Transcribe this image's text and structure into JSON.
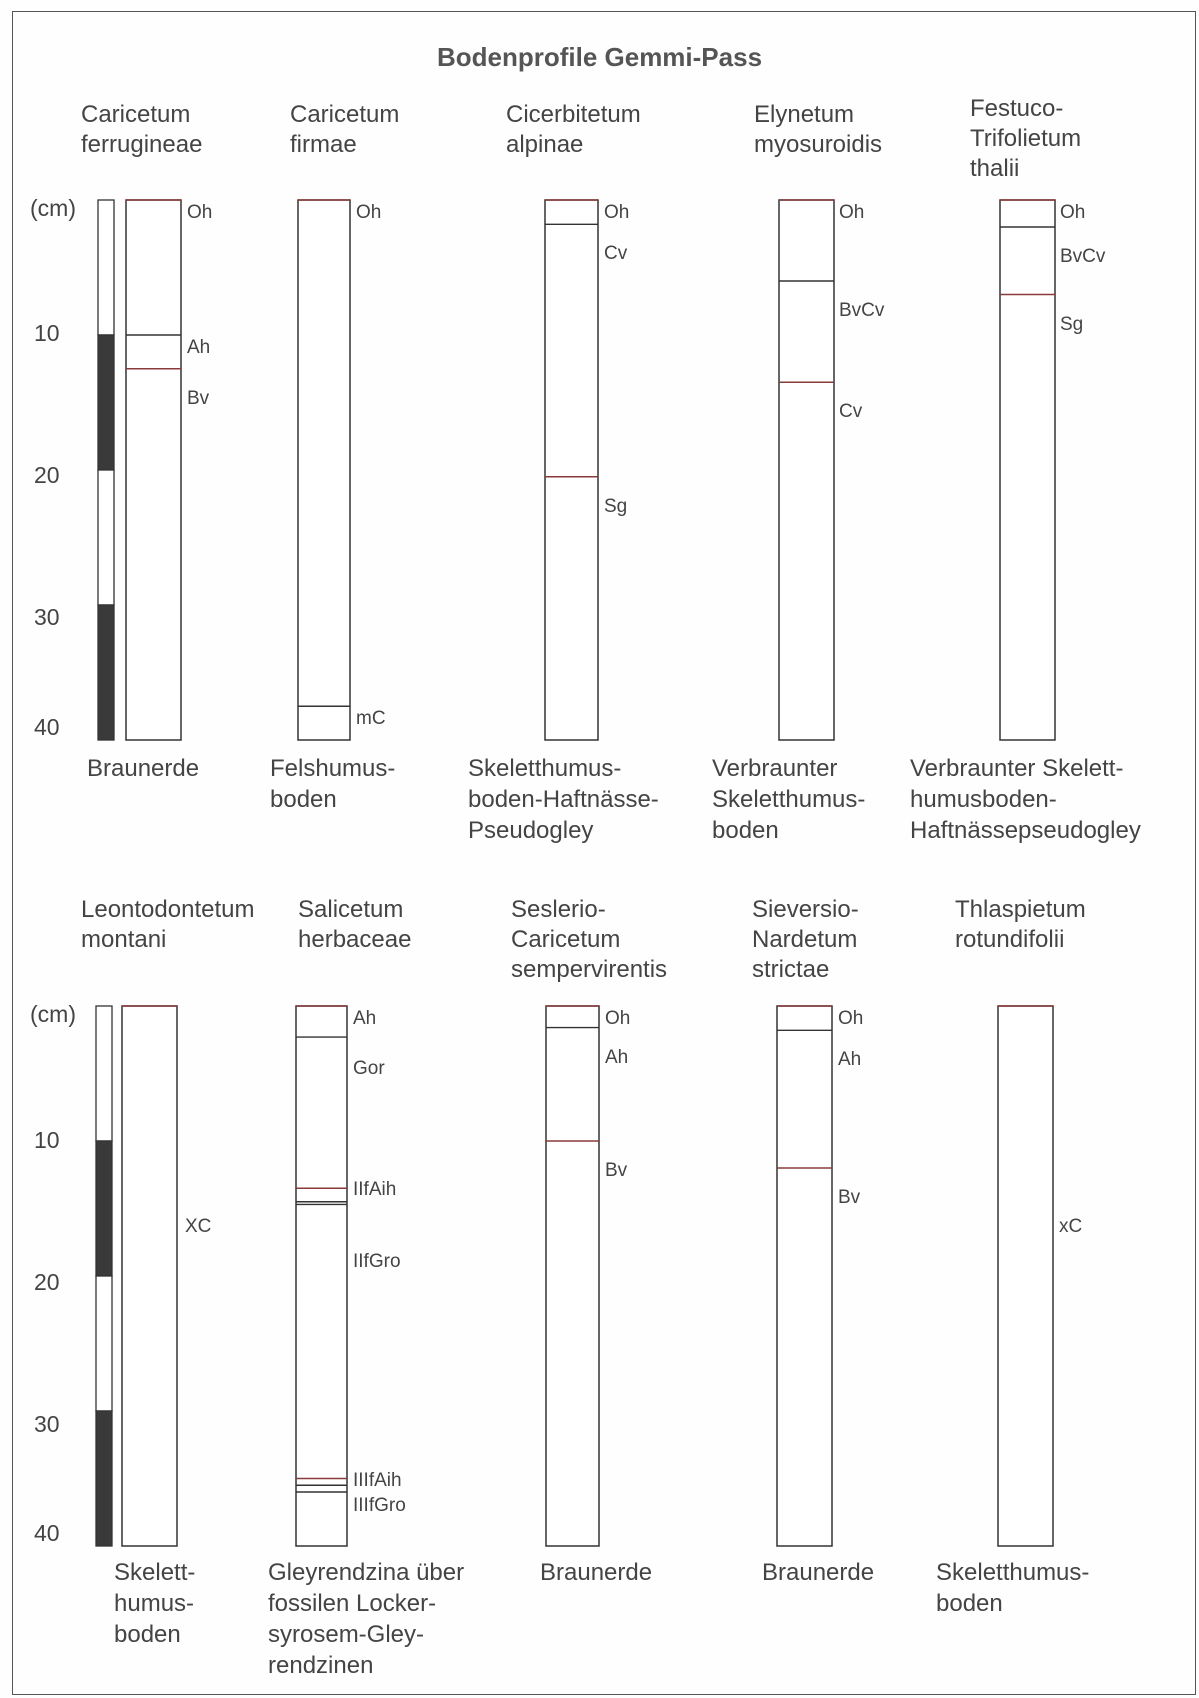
{
  "title": "Bodenprofile Gemmi-Pass",
  "colors": {
    "line": "#333333",
    "boundary": "#8b3a3a",
    "scale_dark": "#3a3a3a"
  },
  "scale": {
    "unit": "(cm)",
    "ticks": [
      10,
      20,
      30,
      40
    ],
    "segments": [
      "white",
      "dark",
      "white",
      "dark"
    ]
  },
  "profiles": [
    {
      "association": "Caricetum\nferrugineae",
      "soil_type": "Braunerde",
      "depth_cm": 40,
      "horizons": [
        {
          "label": "Oh",
          "top": 0
        },
        {
          "label": "Ah",
          "top": 10
        },
        {
          "label": "Bv",
          "top": 12.5
        }
      ]
    },
    {
      "association": "Caricetum\nfirmae",
      "soil_type": "Felshumus-\nboden",
      "depth_cm": 40,
      "horizons": [
        {
          "label": "Oh",
          "top": 0
        },
        {
          "label": "mC",
          "top": 37.5
        }
      ]
    },
    {
      "association": "Cicerbitetum\nalpinae",
      "soil_type": "Skeletthumus-\nboden-Haftnässe-\nPseudogley",
      "depth_cm": 40,
      "horizons": [
        {
          "label": "Oh",
          "top": 0
        },
        {
          "label": "Cv",
          "top": 1.8
        },
        {
          "label": "Sg",
          "top": 20.5
        }
      ]
    },
    {
      "association": "Elynetum\nmyosuroidis",
      "soil_type": "Verbraunter\nSkeletthumus-\nboden",
      "depth_cm": 40,
      "horizons": [
        {
          "label": "Oh",
          "top": 0
        },
        {
          "label": "BvCv",
          "top": 6
        },
        {
          "label": "Cv",
          "top": 13.5
        }
      ]
    },
    {
      "association": "Festuco-\nTrifolietum\nthalii",
      "soil_type": "Verbraunter Skelett-\nhumusboden-\nHaftnässepseudogley",
      "depth_cm": 40,
      "horizons": [
        {
          "label": "Oh",
          "top": 0
        },
        {
          "label": "BvCv",
          "top": 2
        },
        {
          "label": "Sg",
          "top": 7
        }
      ]
    },
    {
      "association": "Leontodontetum\nmontani",
      "soil_type": "Skelett-\nhumus-\nboden",
      "depth_cm": 40,
      "horizons": [
        {
          "label": "XC",
          "top": 0
        }
      ]
    },
    {
      "association": "Salicetum\nherbaceae",
      "soil_type": "Gleyrendzina über\nfossilen Locker-\nsyrosem-Gley-\nrendzinen",
      "depth_cm": 40,
      "horizons": [
        {
          "label": "Ah",
          "top": 0
        },
        {
          "label": "Gor",
          "top": 2.3
        },
        {
          "label": "IIfAih",
          "top": 13.5
        },
        {
          "label": "IIfGro",
          "top": 14.5
        },
        {
          "label": "IIIfAih",
          "top": 35
        },
        {
          "label": "IIIfGro",
          "top": 36
        }
      ]
    },
    {
      "association": "Seslerio-\nCaricetum\nsempervirentis",
      "soil_type": "Braunerde",
      "depth_cm": 40,
      "horizons": [
        {
          "label": "Oh",
          "top": 0
        },
        {
          "label": "Ah",
          "top": 1.6
        },
        {
          "label": "Bv",
          "top": 10
        }
      ]
    },
    {
      "association": "Sieversio-\nNardetum\nstrictae",
      "soil_type": "Braunerde",
      "depth_cm": 40,
      "horizons": [
        {
          "label": "Oh",
          "top": 0
        },
        {
          "label": "Ah",
          "top": 1.8
        },
        {
          "label": "Bv",
          "top": 12
        }
      ]
    },
    {
      "association": "Thlaspietum\nrotundifolii",
      "soil_type": "Skeletthumus-\nboden",
      "depth_cm": 40,
      "horizons": [
        {
          "label": "xC",
          "top": 0
        }
      ]
    }
  ]
}
